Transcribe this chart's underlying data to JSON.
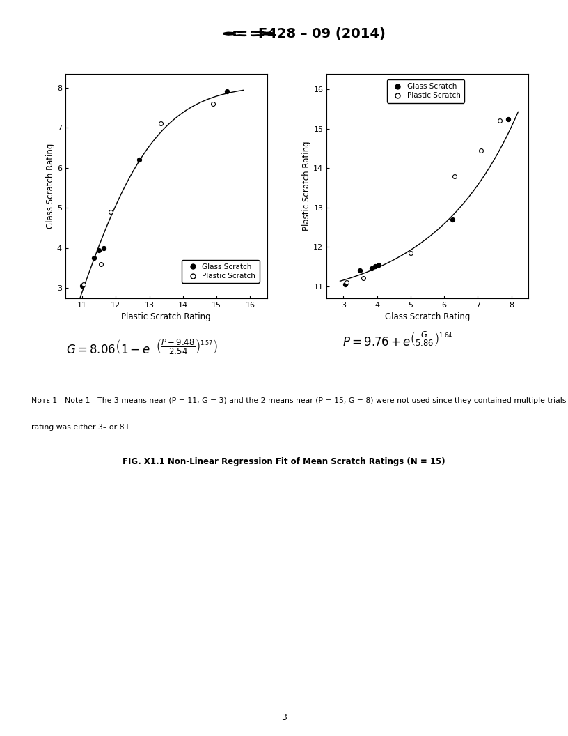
{
  "title": "F428 – 09 (2014)",
  "page_number": "3",
  "fig_caption": "FIG. X1.1 Non-Linear Regression Fit of Mean Scratch Ratings (N = 15)",
  "note_line1": "Note 1—The 3 means near (P = 11, G = 3) and the 2 means near (P = 15, G = 8) were not used since they contained multiple trials where the glass",
  "note_line2": "rating was either 3– or 8+.",
  "left_plot": {
    "xlabel": "Plastic Scratch Rating",
    "ylabel": "Glass Scratch Rating",
    "xlim": [
      10.5,
      16.5
    ],
    "ylim": [
      2.75,
      8.35
    ],
    "xticks": [
      11,
      12,
      13,
      14,
      15,
      16
    ],
    "yticks": [
      3,
      4,
      5,
      6,
      7,
      8
    ],
    "glass_x": [
      11.0,
      11.35,
      11.5,
      11.65,
      12.7,
      15.3
    ],
    "glass_y": [
      3.05,
      3.75,
      3.95,
      4.0,
      6.2,
      7.9
    ],
    "plastic_x": [
      11.05,
      11.55,
      11.85,
      13.35,
      14.9
    ],
    "plastic_y": [
      3.1,
      3.6,
      4.9,
      7.1,
      7.6
    ],
    "curve_params": {
      "a": 8.06,
      "b": 9.48,
      "c": 2.54,
      "n": 1.57
    }
  },
  "right_plot": {
    "xlabel": "Glass Scratch Rating",
    "ylabel": "Plastic Scratch Rating",
    "xlim": [
      2.5,
      8.5
    ],
    "ylim": [
      10.7,
      16.4
    ],
    "xticks": [
      3,
      4,
      5,
      6,
      7,
      8
    ],
    "yticks": [
      11,
      12,
      13,
      14,
      15,
      16
    ],
    "glass_x": [
      3.05,
      3.5,
      3.85,
      3.95,
      4.05,
      6.25,
      7.9
    ],
    "glass_y": [
      11.05,
      11.4,
      11.45,
      11.5,
      11.55,
      12.7,
      15.25
    ],
    "plastic_x": [
      3.1,
      3.6,
      5.0,
      6.3,
      7.1,
      7.65
    ],
    "plastic_y": [
      11.1,
      11.2,
      11.85,
      13.8,
      14.45,
      15.2
    ],
    "curve_params": {
      "a": 9.76,
      "b": 5.86,
      "n": 1.64
    }
  }
}
